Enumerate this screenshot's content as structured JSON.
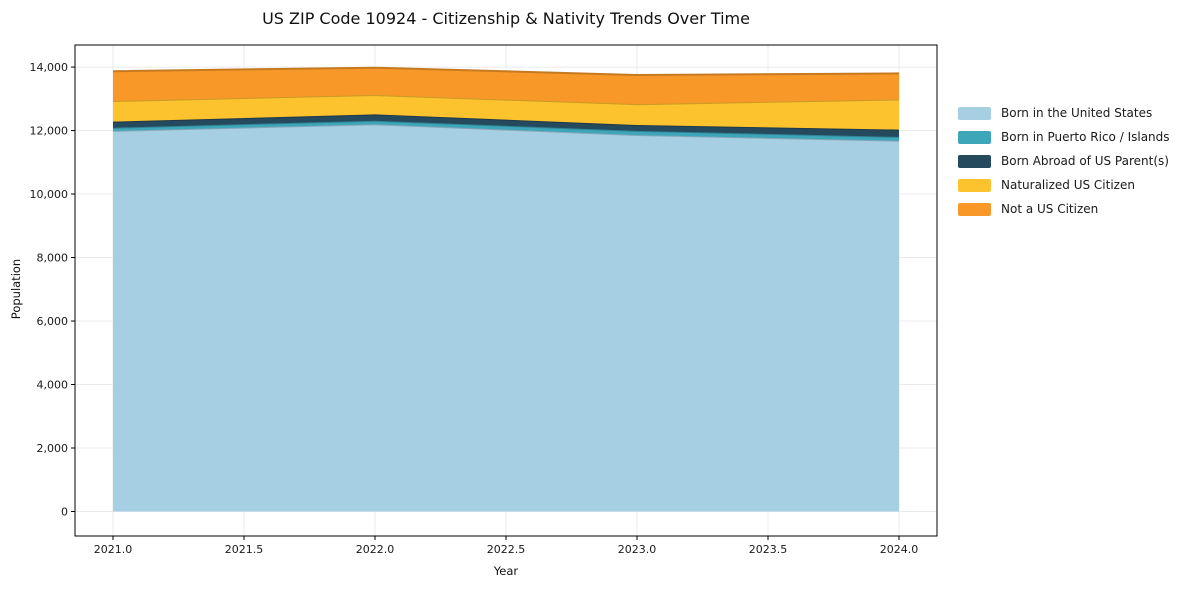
{
  "chart_data": {
    "type": "area",
    "stacked": true,
    "title": "US ZIP Code 10924 - Citizenship & Nativity Trends Over Time",
    "xlabel": "Year",
    "ylabel": "Population",
    "x": [
      2021,
      2022,
      2023,
      2024
    ],
    "series": [
      {
        "name": "Born in the United States",
        "color": "#a6cfe4",
        "values": [
          11990,
          12200,
          11860,
          11680
        ]
      },
      {
        "name": "Born in Puerto Rico / Islands",
        "color": "#3da6b9",
        "values": [
          100,
          110,
          130,
          120
        ]
      },
      {
        "name": "Born Abroad of US Parent(s)",
        "color": "#25495d",
        "values": [
          190,
          200,
          185,
          230
        ]
      },
      {
        "name": "Naturalized US Citizen",
        "color": "#fcc32e",
        "values": [
          650,
          610,
          655,
          950
        ]
      },
      {
        "name": "Not a US Citizen",
        "color": "#f79828",
        "values": [
          940,
          860,
          920,
          820
        ]
      }
    ],
    "totals": [
      13870,
      13980,
      13750,
      13800
    ],
    "x_ticks": {
      "values": [
        2021.0,
        2021.5,
        2022.0,
        2022.5,
        2023.0,
        2023.5,
        2024.0
      ],
      "labels": [
        "2021.0",
        "2021.5",
        "2022.0",
        "2022.5",
        "2023.0",
        "2023.5",
        "2024.0"
      ]
    },
    "y_ticks": {
      "values": [
        0,
        2000,
        4000,
        6000,
        8000,
        10000,
        12000,
        14000
      ],
      "labels": [
        "0",
        "2,000",
        "4,000",
        "6,000",
        "8,000",
        "10,000",
        "12,000",
        "14,000"
      ]
    },
    "xlim": [
      2020.855,
      2024.145
    ],
    "ylim": [
      -772,
      14695
    ],
    "grid": true,
    "legend_position": "right-outside",
    "background": "#ffffff",
    "spine_color": "#000000",
    "grid_color": "#ebebeb"
  }
}
